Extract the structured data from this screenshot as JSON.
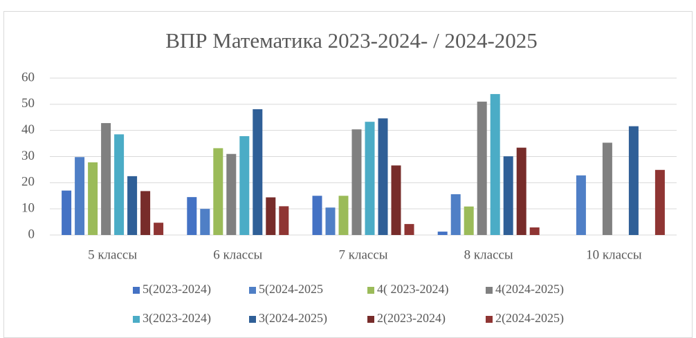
{
  "chart_data": {
    "type": "bar",
    "title": "ВПР Математика 2023-2024- / 2024-2025",
    "categories": [
      "5 классы",
      "6 классы",
      "7 классы",
      "8 классы",
      "10 классы"
    ],
    "series": [
      {
        "name": "5(2023-2024)",
        "color": "#4472c4",
        "values": [
          17,
          14.5,
          15,
          1.3,
          null
        ]
      },
      {
        "name": "5(2024-2025",
        "color": "#4f7fc6",
        "values": [
          29.8,
          10,
          10.5,
          15.6,
          22.8
        ]
      },
      {
        "name": "4( 2023-2024)",
        "color": "#9bbb59",
        "values": [
          27.8,
          33.2,
          15,
          10.9,
          null
        ]
      },
      {
        "name": "4(2024-2025)",
        "color": "#808080",
        "values": [
          42.8,
          31,
          40.4,
          51,
          35.3
        ]
      },
      {
        "name": "3(2023-2024)",
        "color": "#4bacc6",
        "values": [
          38.5,
          37.8,
          43.3,
          53.9,
          null
        ]
      },
      {
        "name": "3(2024-2025)",
        "color": "#2f5f97",
        "values": [
          22.5,
          48.1,
          44.6,
          30.1,
          41.6
        ]
      },
      {
        "name": "2(2023-2024)",
        "color": "#772c2a",
        "values": [
          16.8,
          14.4,
          26.6,
          33.4,
          null
        ]
      },
      {
        "name": "2(2024-2025)",
        "color": "#8f3533",
        "values": [
          4.7,
          11,
          4.2,
          2.9,
          24.9
        ]
      }
    ],
    "ylim": [
      0,
      60
    ],
    "yticks": [
      0,
      10,
      20,
      30,
      40,
      50,
      60
    ],
    "grid": true
  }
}
